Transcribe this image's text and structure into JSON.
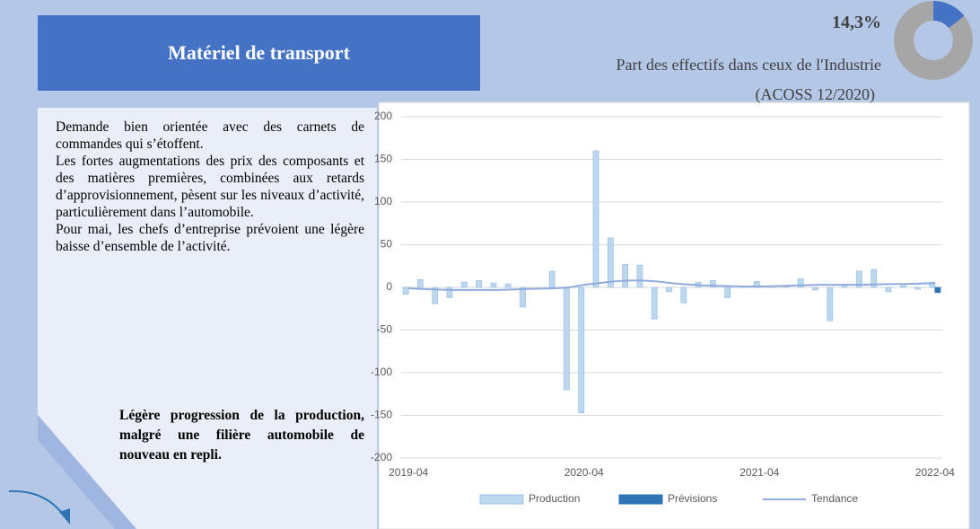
{
  "header": {
    "title": "Matériel de transport"
  },
  "share": {
    "value": 14.3,
    "label": "14,3%",
    "caption": "Part des effectifs dans ceux de l′Industrie",
    "source": "(ACOSS 12/2020)"
  },
  "text": {
    "paragraphs": [
      "Demande bien orientée avec des carnets de commandes qui s’étoffent.",
      "Les fortes augmentations des prix des composants et des matières premières, combinées aux retards d’approvisionnement, pèsent sur les niveaux d’activité, particulièrement dans l’automobile.",
      "Pour mai, les chefs d’entreprise prévoient une légère baisse d’ensemble de l’activité."
    ],
    "conclusion": "Légère progression de la production, malgré une filière automobile de nouveau en repli."
  },
  "chart_data": {
    "type": "bar",
    "categories": [
      "2019-04",
      null,
      null,
      null,
      null,
      null,
      null,
      null,
      null,
      null,
      null,
      null,
      "2020-04",
      null,
      null,
      null,
      null,
      null,
      null,
      null,
      null,
      null,
      null,
      null,
      "2021-04",
      null,
      null,
      null,
      null,
      null,
      null,
      null,
      null,
      null,
      null,
      null,
      "2022-04"
    ],
    "series": [
      {
        "name": "Production",
        "color": "#bdd7ee",
        "values": [
          -8,
          9,
          -19,
          -12,
          6,
          8,
          5,
          4,
          -23,
          0,
          19,
          -120,
          -147,
          160,
          58,
          27,
          26,
          -37,
          -5,
          -18,
          6,
          8,
          -12,
          1,
          7,
          1,
          2,
          10,
          -3,
          -39,
          3,
          19,
          21,
          -5,
          2,
          -2,
          6
        ]
      },
      {
        "name": "Prévisions",
        "color": "#2e75b6",
        "values": [
          null,
          null,
          null,
          null,
          null,
          null,
          null,
          null,
          null,
          null,
          null,
          null,
          null,
          null,
          null,
          null,
          null,
          null,
          null,
          null,
          null,
          null,
          null,
          null,
          null,
          null,
          null,
          null,
          null,
          null,
          null,
          null,
          null,
          null,
          null,
          null,
          -6
        ]
      },
      {
        "name": "Tendance",
        "color": "#8faadc",
        "type": "line",
        "values": [
          -1,
          -2,
          -2.5,
          -3,
          -3,
          -3,
          -3,
          -2.5,
          -2,
          -1.5,
          -1,
          0,
          3,
          5,
          7,
          8,
          8,
          7,
          5,
          3.5,
          2.5,
          2,
          1.5,
          1,
          1,
          1.5,
          2,
          2.5,
          3,
          3,
          3,
          3,
          3.5,
          4,
          4,
          4.5,
          5
        ]
      }
    ],
    "ylim": [
      -200,
      200
    ],
    "yticks": [
      -200,
      -150,
      -100,
      -50,
      0,
      50,
      100,
      150,
      200
    ],
    "grid": true,
    "legend": "bottom"
  }
}
